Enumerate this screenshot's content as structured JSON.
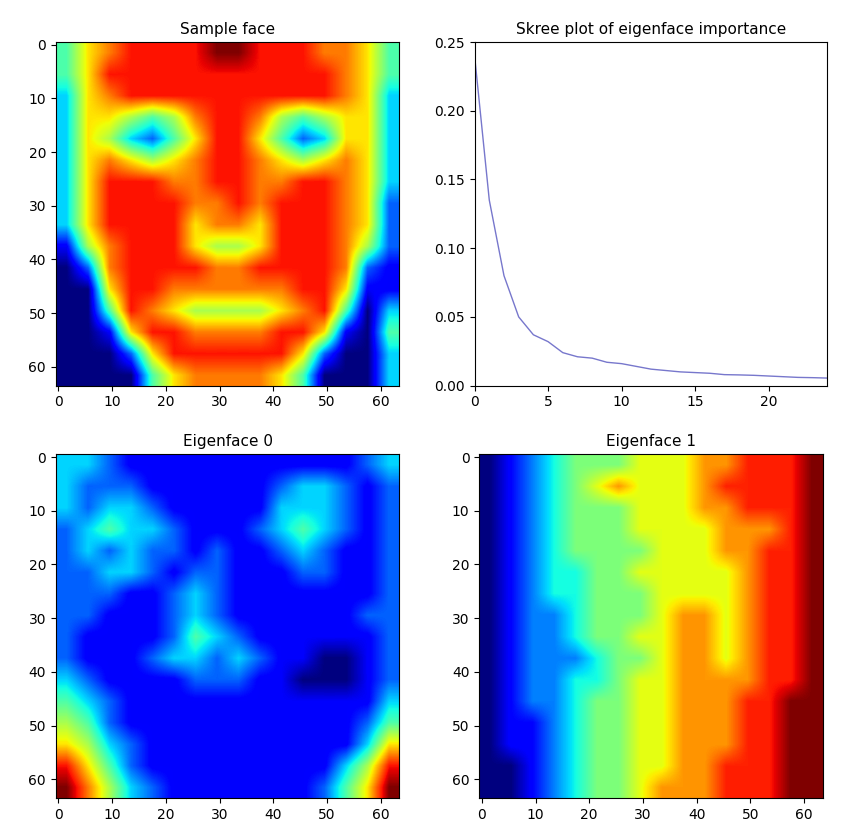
{
  "chart_data": [
    {
      "type": "heatmap",
      "title": "Sample face",
      "xlim": [
        -0.5,
        63.5
      ],
      "ylim": [
        63.5,
        -0.5
      ],
      "xticks": [
        0,
        10,
        20,
        30,
        40,
        50,
        60
      ],
      "yticks": [
        0,
        10,
        20,
        30,
        40,
        50,
        60
      ],
      "cells": [
        [
          4,
          6,
          7,
          8,
          8,
          8,
          8,
          9,
          9,
          8,
          8,
          8,
          7,
          7,
          6,
          4
        ],
        [
          4,
          6,
          8,
          8,
          8,
          8,
          8,
          8,
          8,
          8,
          8,
          8,
          8,
          7,
          6,
          4
        ],
        [
          3,
          6,
          7,
          8,
          8,
          8,
          8,
          8,
          8,
          8,
          8,
          8,
          8,
          7,
          6,
          3
        ],
        [
          3,
          6,
          6,
          5,
          4,
          5,
          7,
          8,
          8,
          7,
          5,
          4,
          5,
          6,
          6,
          3
        ],
        [
          3,
          6,
          5,
          3,
          2,
          4,
          6,
          8,
          8,
          6,
          4,
          2,
          3,
          6,
          6,
          3
        ],
        [
          3,
          6,
          7,
          6,
          5,
          6,
          7,
          8,
          8,
          7,
          6,
          5,
          6,
          7,
          6,
          3
        ],
        [
          3,
          6,
          8,
          8,
          8,
          7,
          7,
          8,
          8,
          7,
          7,
          8,
          8,
          7,
          6,
          3
        ],
        [
          3,
          6,
          8,
          8,
          8,
          8,
          7,
          7,
          8,
          7,
          8,
          8,
          8,
          7,
          6,
          2
        ],
        [
          3,
          6,
          8,
          8,
          8,
          8,
          6,
          7,
          7,
          6,
          8,
          8,
          8,
          7,
          6,
          2
        ],
        [
          1,
          5,
          7,
          8,
          8,
          8,
          6,
          5,
          5,
          6,
          8,
          8,
          8,
          7,
          5,
          2
        ],
        [
          0,
          2,
          7,
          8,
          8,
          8,
          8,
          7,
          7,
          8,
          8,
          8,
          8,
          7,
          2,
          1
        ],
        [
          0,
          0,
          6,
          8,
          8,
          7,
          7,
          7,
          7,
          7,
          7,
          8,
          8,
          6,
          1,
          1
        ],
        [
          0,
          0,
          4,
          8,
          7,
          6,
          5,
          5,
          5,
          5,
          6,
          7,
          8,
          4,
          0,
          3
        ],
        [
          0,
          0,
          1,
          6,
          8,
          8,
          7,
          7,
          7,
          7,
          8,
          8,
          6,
          1,
          0,
          4
        ],
        [
          0,
          0,
          0,
          2,
          6,
          8,
          8,
          8,
          8,
          8,
          8,
          6,
          2,
          0,
          0,
          3
        ],
        [
          0,
          0,
          0,
          0,
          4,
          6,
          7,
          7,
          7,
          7,
          6,
          4,
          0,
          0,
          0,
          3
        ]
      ]
    },
    {
      "type": "line",
      "title": "Skree plot of eigenface importance",
      "x": [
        0,
        1,
        2,
        3,
        4,
        5,
        6,
        7,
        8,
        9,
        10,
        11,
        12,
        13,
        14,
        15,
        16,
        17,
        18,
        19,
        20,
        21,
        22,
        23,
        24
      ],
      "values": [
        0.24,
        0.135,
        0.08,
        0.05,
        0.037,
        0.032,
        0.024,
        0.021,
        0.02,
        0.017,
        0.016,
        0.014,
        0.012,
        0.011,
        0.01,
        0.0095,
        0.009,
        0.008,
        0.0078,
        0.0075,
        0.007,
        0.0065,
        0.006,
        0.0058,
        0.0055
      ],
      "color": "#7777cc",
      "xlim": [
        0,
        24
      ],
      "xticks": [
        0,
        5,
        10,
        15,
        20
      ],
      "ylim": [
        0,
        0.25
      ],
      "yticks": [
        {
          "value": 0,
          "label": "0.00"
        },
        {
          "value": 0.05,
          "label": "0.05"
        },
        {
          "value": 0.1,
          "label": "0.10"
        },
        {
          "value": 0.15,
          "label": "0.15"
        },
        {
          "value": 0.2,
          "label": "0.20"
        },
        {
          "value": 0.25,
          "label": "0.25"
        }
      ]
    },
    {
      "type": "heatmap",
      "title": "Eigenface 0",
      "xlim": [
        -0.5,
        63.5
      ],
      "ylim": [
        63.5,
        -0.5
      ],
      "xticks": [
        0,
        10,
        20,
        30,
        40,
        50,
        60
      ],
      "yticks": [
        0,
        10,
        20,
        30,
        40,
        50,
        60
      ],
      "cells": [
        [
          3,
          3,
          2,
          1,
          1,
          1,
          1,
          1,
          1,
          1,
          1,
          1,
          1,
          1,
          2,
          3
        ],
        [
          3,
          2,
          2,
          2,
          1,
          1,
          1,
          1,
          1,
          1,
          2,
          3,
          3,
          2,
          1,
          2
        ],
        [
          3,
          2,
          3,
          3,
          2,
          1,
          1,
          1,
          1,
          1,
          3,
          3,
          3,
          2,
          1,
          2
        ],
        [
          2,
          3,
          4,
          3,
          3,
          2,
          1,
          1,
          1,
          2,
          3,
          4,
          3,
          2,
          1,
          2
        ],
        [
          2,
          3,
          2,
          3,
          2,
          2,
          1,
          2,
          1,
          1,
          2,
          3,
          2,
          1,
          1,
          2
        ],
        [
          2,
          2,
          3,
          3,
          2,
          1,
          2,
          2,
          1,
          1,
          1,
          2,
          2,
          1,
          1,
          2
        ],
        [
          2,
          2,
          2,
          1,
          1,
          2,
          3,
          2,
          1,
          1,
          1,
          1,
          1,
          1,
          1,
          2
        ],
        [
          2,
          2,
          1,
          1,
          1,
          2,
          3,
          2,
          1,
          1,
          1,
          1,
          1,
          1,
          2,
          2
        ],
        [
          2,
          1,
          1,
          1,
          1,
          2,
          4,
          3,
          2,
          1,
          1,
          1,
          1,
          1,
          1,
          2
        ],
        [
          2,
          1,
          1,
          1,
          2,
          3,
          3,
          2,
          3,
          2,
          1,
          1,
          0,
          0,
          1,
          2
        ],
        [
          3,
          2,
          1,
          1,
          1,
          1,
          2,
          2,
          2,
          1,
          1,
          0,
          0,
          0,
          1,
          2
        ],
        [
          4,
          3,
          2,
          1,
          1,
          1,
          1,
          1,
          1,
          1,
          1,
          1,
          1,
          1,
          1,
          3
        ],
        [
          5,
          4,
          2,
          1,
          1,
          1,
          1,
          1,
          1,
          1,
          1,
          1,
          1,
          1,
          2,
          4
        ],
        [
          6,
          5,
          3,
          2,
          1,
          1,
          1,
          1,
          1,
          1,
          1,
          1,
          1,
          1,
          3,
          6
        ],
        [
          8,
          6,
          4,
          2,
          1,
          1,
          1,
          1,
          1,
          1,
          1,
          1,
          1,
          3,
          5,
          8
        ],
        [
          9,
          7,
          5,
          3,
          2,
          1,
          1,
          1,
          1,
          1,
          1,
          1,
          2,
          4,
          6,
          9
        ]
      ]
    },
    {
      "type": "heatmap",
      "title": "Eigenface 1",
      "xlim": [
        -0.5,
        63.5
      ],
      "ylim": [
        63.5,
        -0.5
      ],
      "xticks": [
        0,
        10,
        20,
        30,
        40,
        50,
        60
      ],
      "yticks": [
        0,
        10,
        20,
        30,
        40,
        50,
        60
      ],
      "cells": [
        [
          1,
          2,
          3,
          4,
          5,
          5,
          5,
          6,
          6,
          6,
          7,
          7,
          8,
          8,
          8,
          9
        ],
        [
          1,
          2,
          3,
          4,
          5,
          6,
          7,
          6,
          6,
          6,
          7,
          8,
          8,
          8,
          8,
          9
        ],
        [
          1,
          2,
          3,
          4,
          5,
          5,
          5,
          6,
          6,
          6,
          7,
          7,
          8,
          8,
          8,
          9
        ],
        [
          1,
          2,
          3,
          4,
          5,
          5,
          5,
          6,
          6,
          6,
          6,
          7,
          7,
          7,
          8,
          9
        ],
        [
          1,
          2,
          3,
          4,
          5,
          5,
          5,
          5,
          6,
          6,
          6,
          7,
          7,
          8,
          8,
          9
        ],
        [
          1,
          2,
          3,
          4,
          4,
          5,
          5,
          6,
          6,
          6,
          6,
          6,
          7,
          8,
          8,
          9
        ],
        [
          1,
          2,
          3,
          4,
          4,
          5,
          5,
          5,
          6,
          6,
          6,
          6,
          7,
          8,
          8,
          9
        ],
        [
          1,
          2,
          3,
          3,
          4,
          5,
          5,
          5,
          6,
          7,
          7,
          6,
          7,
          8,
          8,
          9
        ],
        [
          1,
          2,
          3,
          3,
          4,
          5,
          5,
          6,
          6,
          7,
          7,
          6,
          7,
          8,
          8,
          9
        ],
        [
          1,
          2,
          3,
          3,
          3,
          4,
          5,
          5,
          6,
          7,
          7,
          6,
          7,
          8,
          8,
          9
        ],
        [
          1,
          2,
          3,
          3,
          4,
          4,
          5,
          6,
          6,
          7,
          7,
          7,
          7,
          8,
          8,
          9
        ],
        [
          1,
          2,
          3,
          3,
          4,
          5,
          5,
          6,
          6,
          7,
          7,
          7,
          8,
          8,
          9,
          9
        ],
        [
          1,
          2,
          2,
          3,
          4,
          5,
          5,
          6,
          6,
          7,
          7,
          7,
          8,
          8,
          9,
          9
        ],
        [
          1,
          2,
          2,
          3,
          4,
          5,
          5,
          6,
          6,
          7,
          7,
          7,
          8,
          8,
          9,
          9
        ],
        [
          1,
          1,
          2,
          3,
          4,
          5,
          5,
          6,
          6,
          7,
          7,
          8,
          8,
          8,
          9,
          9
        ],
        [
          1,
          1,
          2,
          3,
          4,
          5,
          5,
          6,
          7,
          7,
          7,
          8,
          8,
          8,
          9,
          9
        ]
      ]
    }
  ]
}
